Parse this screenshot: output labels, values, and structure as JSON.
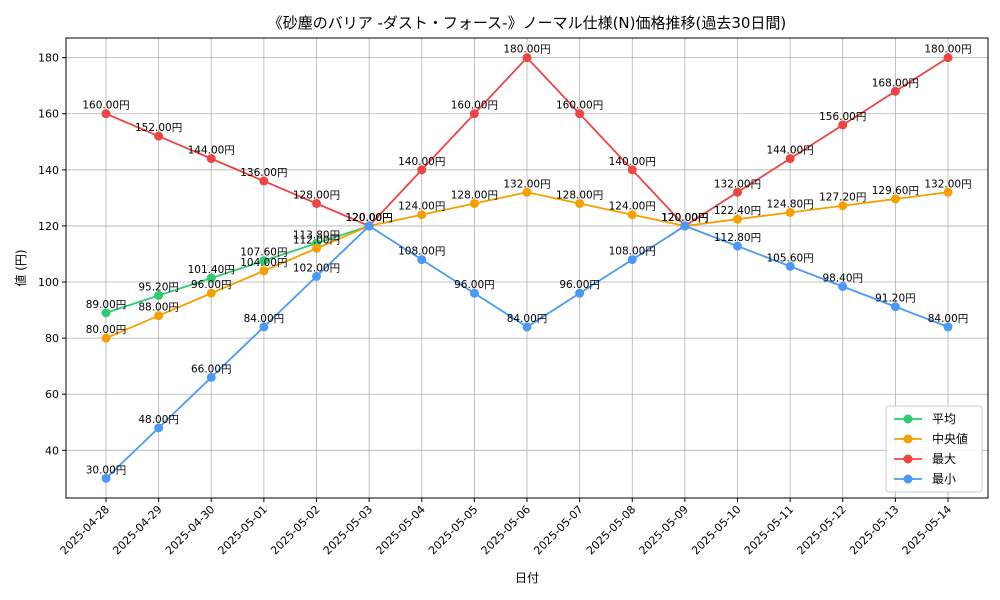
{
  "chart_data": {
    "type": "line",
    "title": "《砂塵のバリア -ダスト・フォース-》ノーマル仕様(N)価格推移(過去30日間)",
    "xlabel": "日付",
    "ylabel": "値 (円)",
    "x": [
      "2025-04-28",
      "2025-04-29",
      "2025-04-30",
      "2025-05-01",
      "2025-05-02",
      "2025-05-03",
      "2025-05-04",
      "2025-05-05",
      "2025-05-06",
      "2025-05-07",
      "2025-05-08",
      "2025-05-09",
      "2025-05-10",
      "2025-05-11",
      "2025-05-12",
      "2025-05-13",
      "2025-05-14"
    ],
    "ylim": [
      23,
      187
    ],
    "yticks": [
      40,
      60,
      80,
      100,
      120,
      140,
      160,
      180
    ],
    "grid": true,
    "legend_position": "bottom-right",
    "value_suffix": "円",
    "series": [
      {
        "name": "平均",
        "color": "#2ecc71",
        "values": [
          89.0,
          95.2,
          101.4,
          107.6,
          113.8,
          120.0,
          null,
          null,
          null,
          null,
          null,
          null,
          null,
          null,
          null,
          null,
          null
        ]
      },
      {
        "name": "中央値",
        "color": "#f5a000",
        "values": [
          80.0,
          88.0,
          96.0,
          104.0,
          112.0,
          120.0,
          124.0,
          128.0,
          132.0,
          128.0,
          124.0,
          120.0,
          122.4,
          124.8,
          127.2,
          129.6,
          132.0
        ]
      },
      {
        "name": "最大",
        "color": "#ef4444",
        "values": [
          160.0,
          152.0,
          144.0,
          136.0,
          128.0,
          120.0,
          140.0,
          160.0,
          180.0,
          160.0,
          140.0,
          120.0,
          132.0,
          144.0,
          156.0,
          168.0,
          180.0
        ]
      },
      {
        "name": "最小",
        "color": "#4a9af5",
        "values": [
          30.0,
          48.0,
          66.0,
          84.0,
          102.0,
          120.0,
          108.0,
          96.0,
          84.0,
          96.0,
          108.0,
          120.0,
          112.8,
          105.6,
          98.4,
          91.2,
          84.0
        ]
      }
    ]
  }
}
